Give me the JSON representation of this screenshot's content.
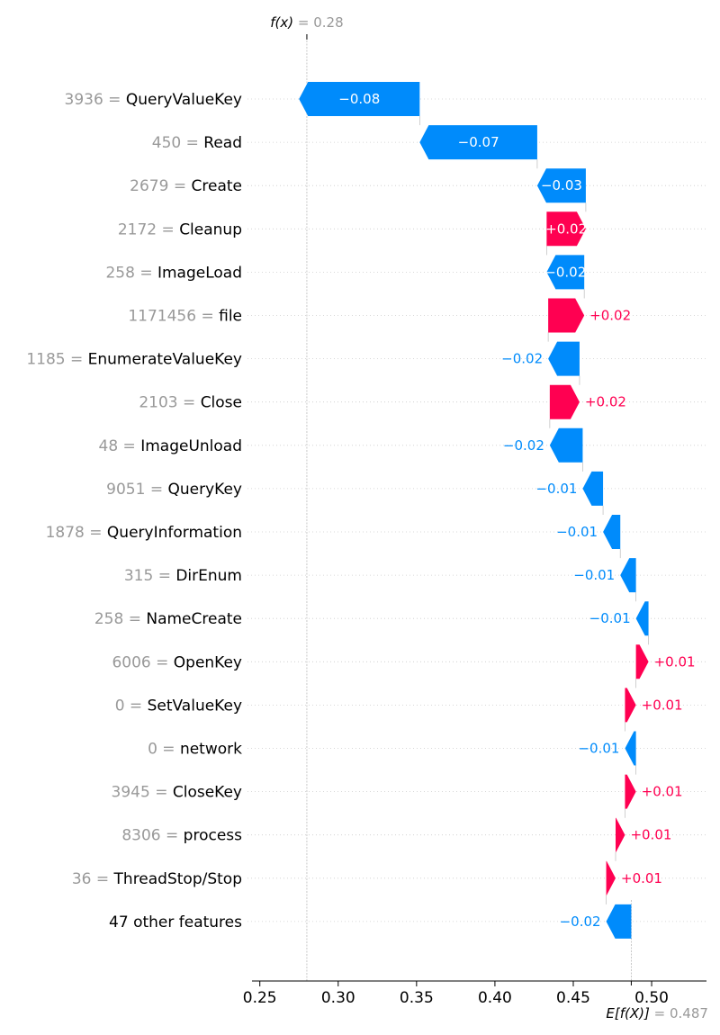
{
  "chart_data": {
    "type": "waterfall",
    "fx": {
      "label": "f(x)",
      "value_text": "= 0.28",
      "value": 0.28
    },
    "efx": {
      "label": "E[f(X)]",
      "value_text": "= 0.487",
      "value": 0.487
    },
    "xlim": [
      0.245,
      0.535
    ],
    "xticks": [
      {
        "value": 0.25,
        "label": "0.25"
      },
      {
        "value": 0.3,
        "label": "0.30"
      },
      {
        "value": 0.35,
        "label": "0.35"
      },
      {
        "value": 0.4,
        "label": "0.40"
      },
      {
        "value": 0.45,
        "label": "0.45"
      },
      {
        "value": 0.5,
        "label": "0.50"
      }
    ],
    "colors": {
      "positive": "#ff0051",
      "negative": "#008bfb",
      "feature_value": "#999999"
    },
    "features": [
      {
        "value": "3936",
        "name": "QueryValueKey",
        "contribution": -0.077,
        "label": "−0.08",
        "label_inside": true
      },
      {
        "value": "450",
        "name": "Read",
        "contribution": -0.075,
        "label": "−0.07",
        "label_inside": true
      },
      {
        "value": "2679",
        "name": "Create",
        "contribution": -0.031,
        "label": "−0.03",
        "label_inside": true
      },
      {
        "value": "2172",
        "name": "Cleanup",
        "contribution": 0.025,
        "label": "+0.02",
        "label_inside": true
      },
      {
        "value": "258",
        "name": "ImageLoad",
        "contribution": -0.024,
        "label": "−0.02",
        "label_inside": true
      },
      {
        "value": "1171456",
        "name": "file",
        "contribution": 0.023,
        "label": "+0.02",
        "label_inside": false
      },
      {
        "value": "1185",
        "name": "EnumerateValueKey",
        "contribution": -0.02,
        "label": "−0.02",
        "label_inside": false
      },
      {
        "value": "2103",
        "name": "Close",
        "contribution": 0.019,
        "label": "+0.02",
        "label_inside": false
      },
      {
        "value": "48",
        "name": "ImageUnload",
        "contribution": -0.021,
        "label": "−0.02",
        "label_inside": false
      },
      {
        "value": "9051",
        "name": "QueryKey",
        "contribution": -0.013,
        "label": "−0.01",
        "label_inside": false
      },
      {
        "value": "1878",
        "name": "QueryInformation",
        "contribution": -0.011,
        "label": "−0.01",
        "label_inside": false
      },
      {
        "value": "315",
        "name": "DirEnum",
        "contribution": -0.01,
        "label": "−0.01",
        "label_inside": false
      },
      {
        "value": "258",
        "name": "NameCreate",
        "contribution": -0.008,
        "label": "−0.01",
        "label_inside": false
      },
      {
        "value": "6006",
        "name": "OpenKey",
        "contribution": 0.008,
        "label": "+0.01",
        "label_inside": false
      },
      {
        "value": "0",
        "name": "SetValueKey",
        "contribution": 0.007,
        "label": "+0.01",
        "label_inside": false
      },
      {
        "value": "0",
        "name": "network",
        "contribution": -0.007,
        "label": "−0.01",
        "label_inside": false
      },
      {
        "value": "3945",
        "name": "CloseKey",
        "contribution": 0.007,
        "label": "+0.01",
        "label_inside": false
      },
      {
        "value": "8306",
        "name": "process",
        "contribution": 0.006,
        "label": "+0.01",
        "label_inside": false
      },
      {
        "value": "36",
        "name": "ThreadStop/Stop",
        "contribution": 0.006,
        "label": "+0.01",
        "label_inside": false
      },
      {
        "value": "",
        "name": "47 other features",
        "contribution": -0.016,
        "label": "−0.02",
        "label_inside": false
      }
    ]
  }
}
